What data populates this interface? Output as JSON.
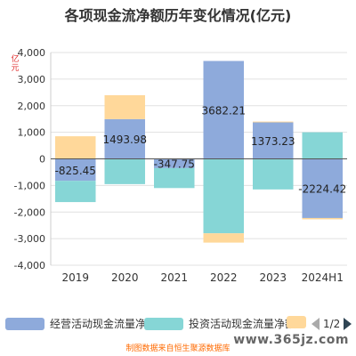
{
  "chart_data": {
    "type": "bar",
    "stacked": true,
    "title": "各项现金流净额历年变化情况(亿元)",
    "ylabel": "亿元",
    "categories": [
      "2019",
      "2020",
      "2021",
      "2022",
      "2023",
      "2024H1"
    ],
    "ylim": [
      -4000,
      4000
    ],
    "yticks": [
      "4,000",
      "3,000",
      "2,000",
      "1,000",
      "0",
      "-1,000",
      "-2,000",
      "-3,000",
      "-4,000"
    ],
    "ytick_values": [
      4000,
      3000,
      2000,
      1000,
      0,
      -1000,
      -2000,
      -3000,
      -4000
    ],
    "grid": true,
    "series": [
      {
        "name": "经营活动现金流量净额",
        "color": "#8eaadb",
        "values": [
          -825.45,
          1493.98,
          -347.75,
          3682.21,
          1373.23,
          -2224.42
        ]
      },
      {
        "name": "投资活动现金流量净额",
        "color": "#86d6d6",
        "values": [
          -800,
          -950,
          -750,
          -2800,
          -1150,
          1000
        ]
      },
      {
        "name": "",
        "color": "#ffd89a",
        "values": [
          850,
          900,
          0,
          -350,
          30,
          -50
        ]
      }
    ],
    "data_labels": [
      "-825.45",
      "1493.98",
      "-347.75",
      "3682.21",
      "1373.23",
      "-2224.42"
    ]
  },
  "legend": {
    "items": [
      "经营活动现金流量净额",
      "投资活动现金流量净额"
    ],
    "page": "1/2"
  },
  "footer": "制图数据来自恒生聚源数据库",
  "watermark": "www.365jz.com"
}
